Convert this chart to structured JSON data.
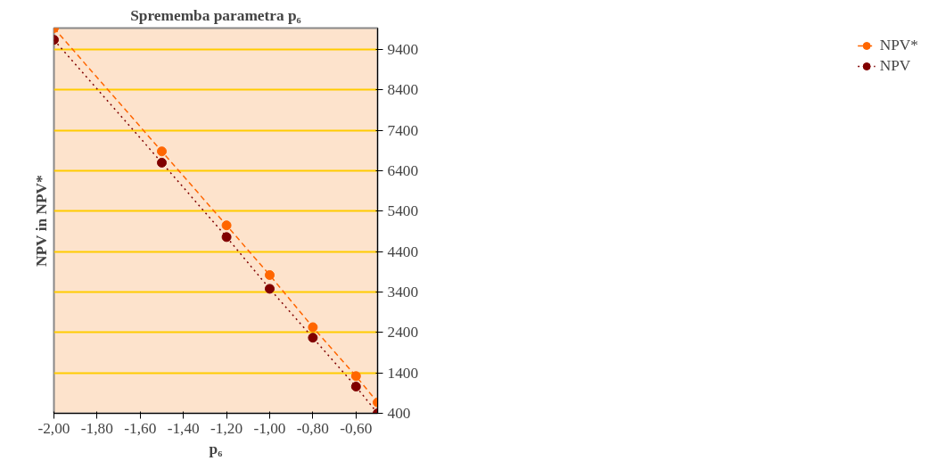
{
  "chart_data": {
    "type": "line",
    "title": "Sprememba parametra p₆",
    "xlabel": "p₆",
    "ylabel": "NPV in NPV*",
    "x": [
      -2.0,
      -1.5,
      -1.2,
      -1.0,
      -0.8,
      -0.6,
      -0.5
    ],
    "series": [
      {
        "name": "NPV*",
        "color": "#ff6600",
        "line_style": "dashed",
        "values": [
          9930,
          6880,
          5050,
          3820,
          2530,
          1320,
          670
        ]
      },
      {
        "name": "NPV",
        "color": "#800000",
        "line_style": "dotted",
        "values": [
          9640,
          6600,
          4760,
          3480,
          2270,
          1060,
          400
        ]
      }
    ],
    "marker": "circle",
    "xlim": [
      -2.0,
      -0.5
    ],
    "xticks": [
      {
        "value": -2.0,
        "label": "-2,00"
      },
      {
        "value": -1.8,
        "label": "-1,80"
      },
      {
        "value": -1.6,
        "label": "-1,60"
      },
      {
        "value": -1.4,
        "label": "-1,40"
      },
      {
        "value": -1.2,
        "label": "-1,20"
      },
      {
        "value": -1.0,
        "label": "-1,00"
      },
      {
        "value": -0.8,
        "label": "-0,80"
      },
      {
        "value": -0.6,
        "label": "-0,60"
      }
    ],
    "ylim": [
      400,
      9930
    ],
    "yticks": [
      400,
      1400,
      2400,
      3400,
      4400,
      5400,
      6400,
      7400,
      8400,
      9400
    ],
    "grid": "y",
    "legend": "right"
  }
}
